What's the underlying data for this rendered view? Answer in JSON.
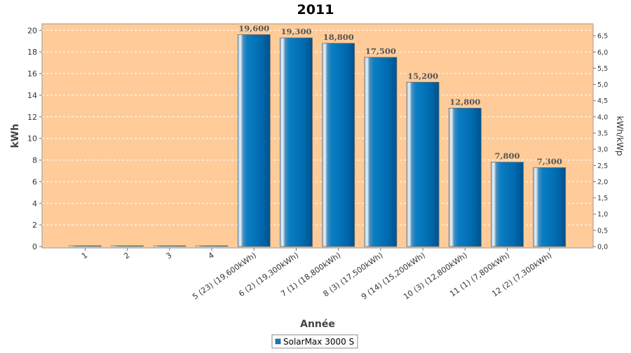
{
  "chart_data": {
    "type": "bar",
    "title": "2011",
    "xlabel": "Année",
    "ylabel": "kWh",
    "ylabel_right": "kWh/kWp",
    "ylim": [
      0,
      20.6
    ],
    "yticks": [
      0,
      2,
      4,
      6,
      8,
      10,
      12,
      14,
      16,
      18,
      20
    ],
    "ylim_right": [
      0,
      6.87
    ],
    "yticks_right": [
      "0,0",
      "0,5",
      "1,0",
      "1,5",
      "2,0",
      "2,5",
      "3,0",
      "3,5",
      "4,0",
      "4,5",
      "5,0",
      "5,5",
      "6,0",
      "6,5"
    ],
    "categories": [
      "1",
      "2",
      "3",
      "4",
      "5 (23)  (19,600kWh)",
      "6 (2)  (19,300kWh)",
      "7 (1)  (18,800kWh)",
      "8 (3)  (17,500kWh)",
      "9 (14)  (15,200kWh)",
      "10 (3)  (12,800kWh)",
      "11 (1)  (7,800kWh)",
      "12 (2)  (7,300kWh)"
    ],
    "series": [
      {
        "name": "SolarMax 3000 S",
        "color": "#0a7fc4",
        "values": [
          0,
          0,
          0,
          0,
          19.6,
          19.3,
          18.8,
          17.5,
          15.2,
          12.8,
          7.8,
          7.3
        ],
        "labels": [
          "",
          "",
          "",
          "",
          "19,600",
          "19,300",
          "18,800",
          "17,500",
          "15,200",
          "12,800",
          "7,800",
          "7,300"
        ]
      }
    ],
    "plot_background": "#ffcc99",
    "grid": true,
    "legend_position": "bottom-center"
  }
}
